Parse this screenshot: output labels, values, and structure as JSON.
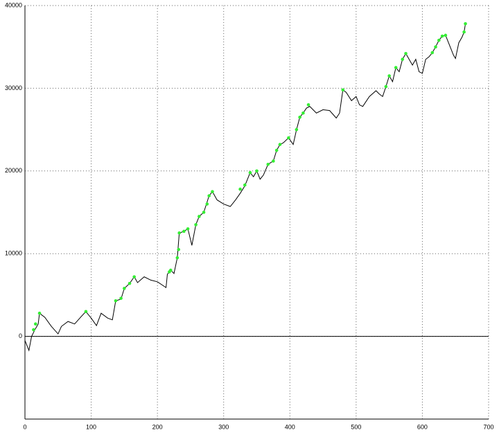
{
  "chart_data": {
    "type": "line",
    "xlim": [
      0,
      700
    ],
    "xticks": [
      0,
      100,
      200,
      300,
      400,
      500,
      600,
      700
    ],
    "ylim": [
      -10000,
      40000
    ],
    "yticks": [
      0,
      10000,
      20000,
      30000,
      40000
    ],
    "grid": true,
    "series": [
      {
        "mode": "line",
        "color": "#000000",
        "x": [
          0,
          6,
          10,
          15,
          20,
          22,
          30,
          40,
          50,
          55,
          65,
          75,
          85,
          92,
          100,
          108,
          115,
          125,
          132,
          137,
          145,
          150,
          158,
          165,
          170,
          180,
          190,
          200,
          213,
          215,
          220,
          225,
          230,
          233,
          240,
          246,
          252,
          258,
          263,
          270,
          278,
          283,
          290,
          300,
          310,
          318,
          325,
          332,
          340,
          345,
          350,
          355,
          360,
          367,
          375,
          380,
          385,
          390,
          398,
          405,
          410,
          415,
          420,
          425,
          430,
          440,
          450,
          460,
          470,
          475,
          480,
          485,
          493,
          500,
          505,
          510,
          520,
          530,
          535,
          540,
          545,
          550,
          555,
          560,
          565,
          570,
          575,
          580,
          585,
          590,
          595,
          600,
          605,
          610,
          615,
          620,
          625,
          630,
          635,
          642,
          647,
          650,
          655,
          660,
          663,
          665
        ],
        "values": [
          -500,
          -1700,
          0,
          800,
          1500,
          2800,
          2300,
          1200,
          300,
          1200,
          1800,
          1500,
          2400,
          3000,
          2200,
          1300,
          2800,
          2200,
          2000,
          4300,
          4500,
          5800,
          6400,
          7200,
          6500,
          7200,
          6800,
          6600,
          5900,
          7500,
          8000,
          7600,
          9500,
          12500,
          12700,
          13000,
          11000,
          13500,
          14500,
          15000,
          17000,
          17500,
          16500,
          16000,
          15700,
          16500,
          17300,
          18200,
          19800,
          19300,
          20000,
          19000,
          19500,
          20800,
          21200,
          22500,
          23200,
          23400,
          24000,
          23200,
          25000,
          26500,
          27000,
          27600,
          27800,
          27000,
          27400,
          27300,
          26400,
          27000,
          29800,
          29500,
          28500,
          29000,
          28000,
          27800,
          29000,
          29700,
          29300,
          29000,
          30200,
          31500,
          30800,
          32500,
          32000,
          33500,
          34200,
          33500,
          32800,
          33500,
          32000,
          31800,
          33500,
          33800,
          34300,
          35000,
          35800,
          36300,
          36400,
          35000,
          34000,
          33600,
          35500,
          36200,
          36800,
          37800
        ]
      },
      {
        "mode": "markers",
        "color": "#33ee33",
        "x": [
          13,
          16,
          22,
          92,
          137,
          145,
          150,
          158,
          165,
          218,
          220,
          230,
          232,
          233,
          240,
          246,
          258,
          263,
          270,
          275,
          278,
          283,
          325,
          332,
          340,
          350,
          367,
          375,
          380,
          385,
          398,
          410,
          415,
          420,
          428,
          480,
          545,
          550,
          560,
          570,
          575,
          615,
          620,
          625,
          630,
          635,
          663,
          665
        ],
        "values": [
          800,
          1500,
          2800,
          3000,
          4300,
          4600,
          5800,
          6400,
          7200,
          7800,
          8000,
          9500,
          10500,
          12500,
          12700,
          13000,
          13500,
          14500,
          15000,
          16000,
          17000,
          17500,
          17800,
          18300,
          19800,
          20000,
          20800,
          21200,
          22500,
          23200,
          24000,
          25000,
          26500,
          27000,
          28000,
          29800,
          30200,
          31500,
          32500,
          33500,
          34200,
          34300,
          35000,
          35800,
          36300,
          36400,
          36800,
          37800
        ]
      }
    ]
  }
}
